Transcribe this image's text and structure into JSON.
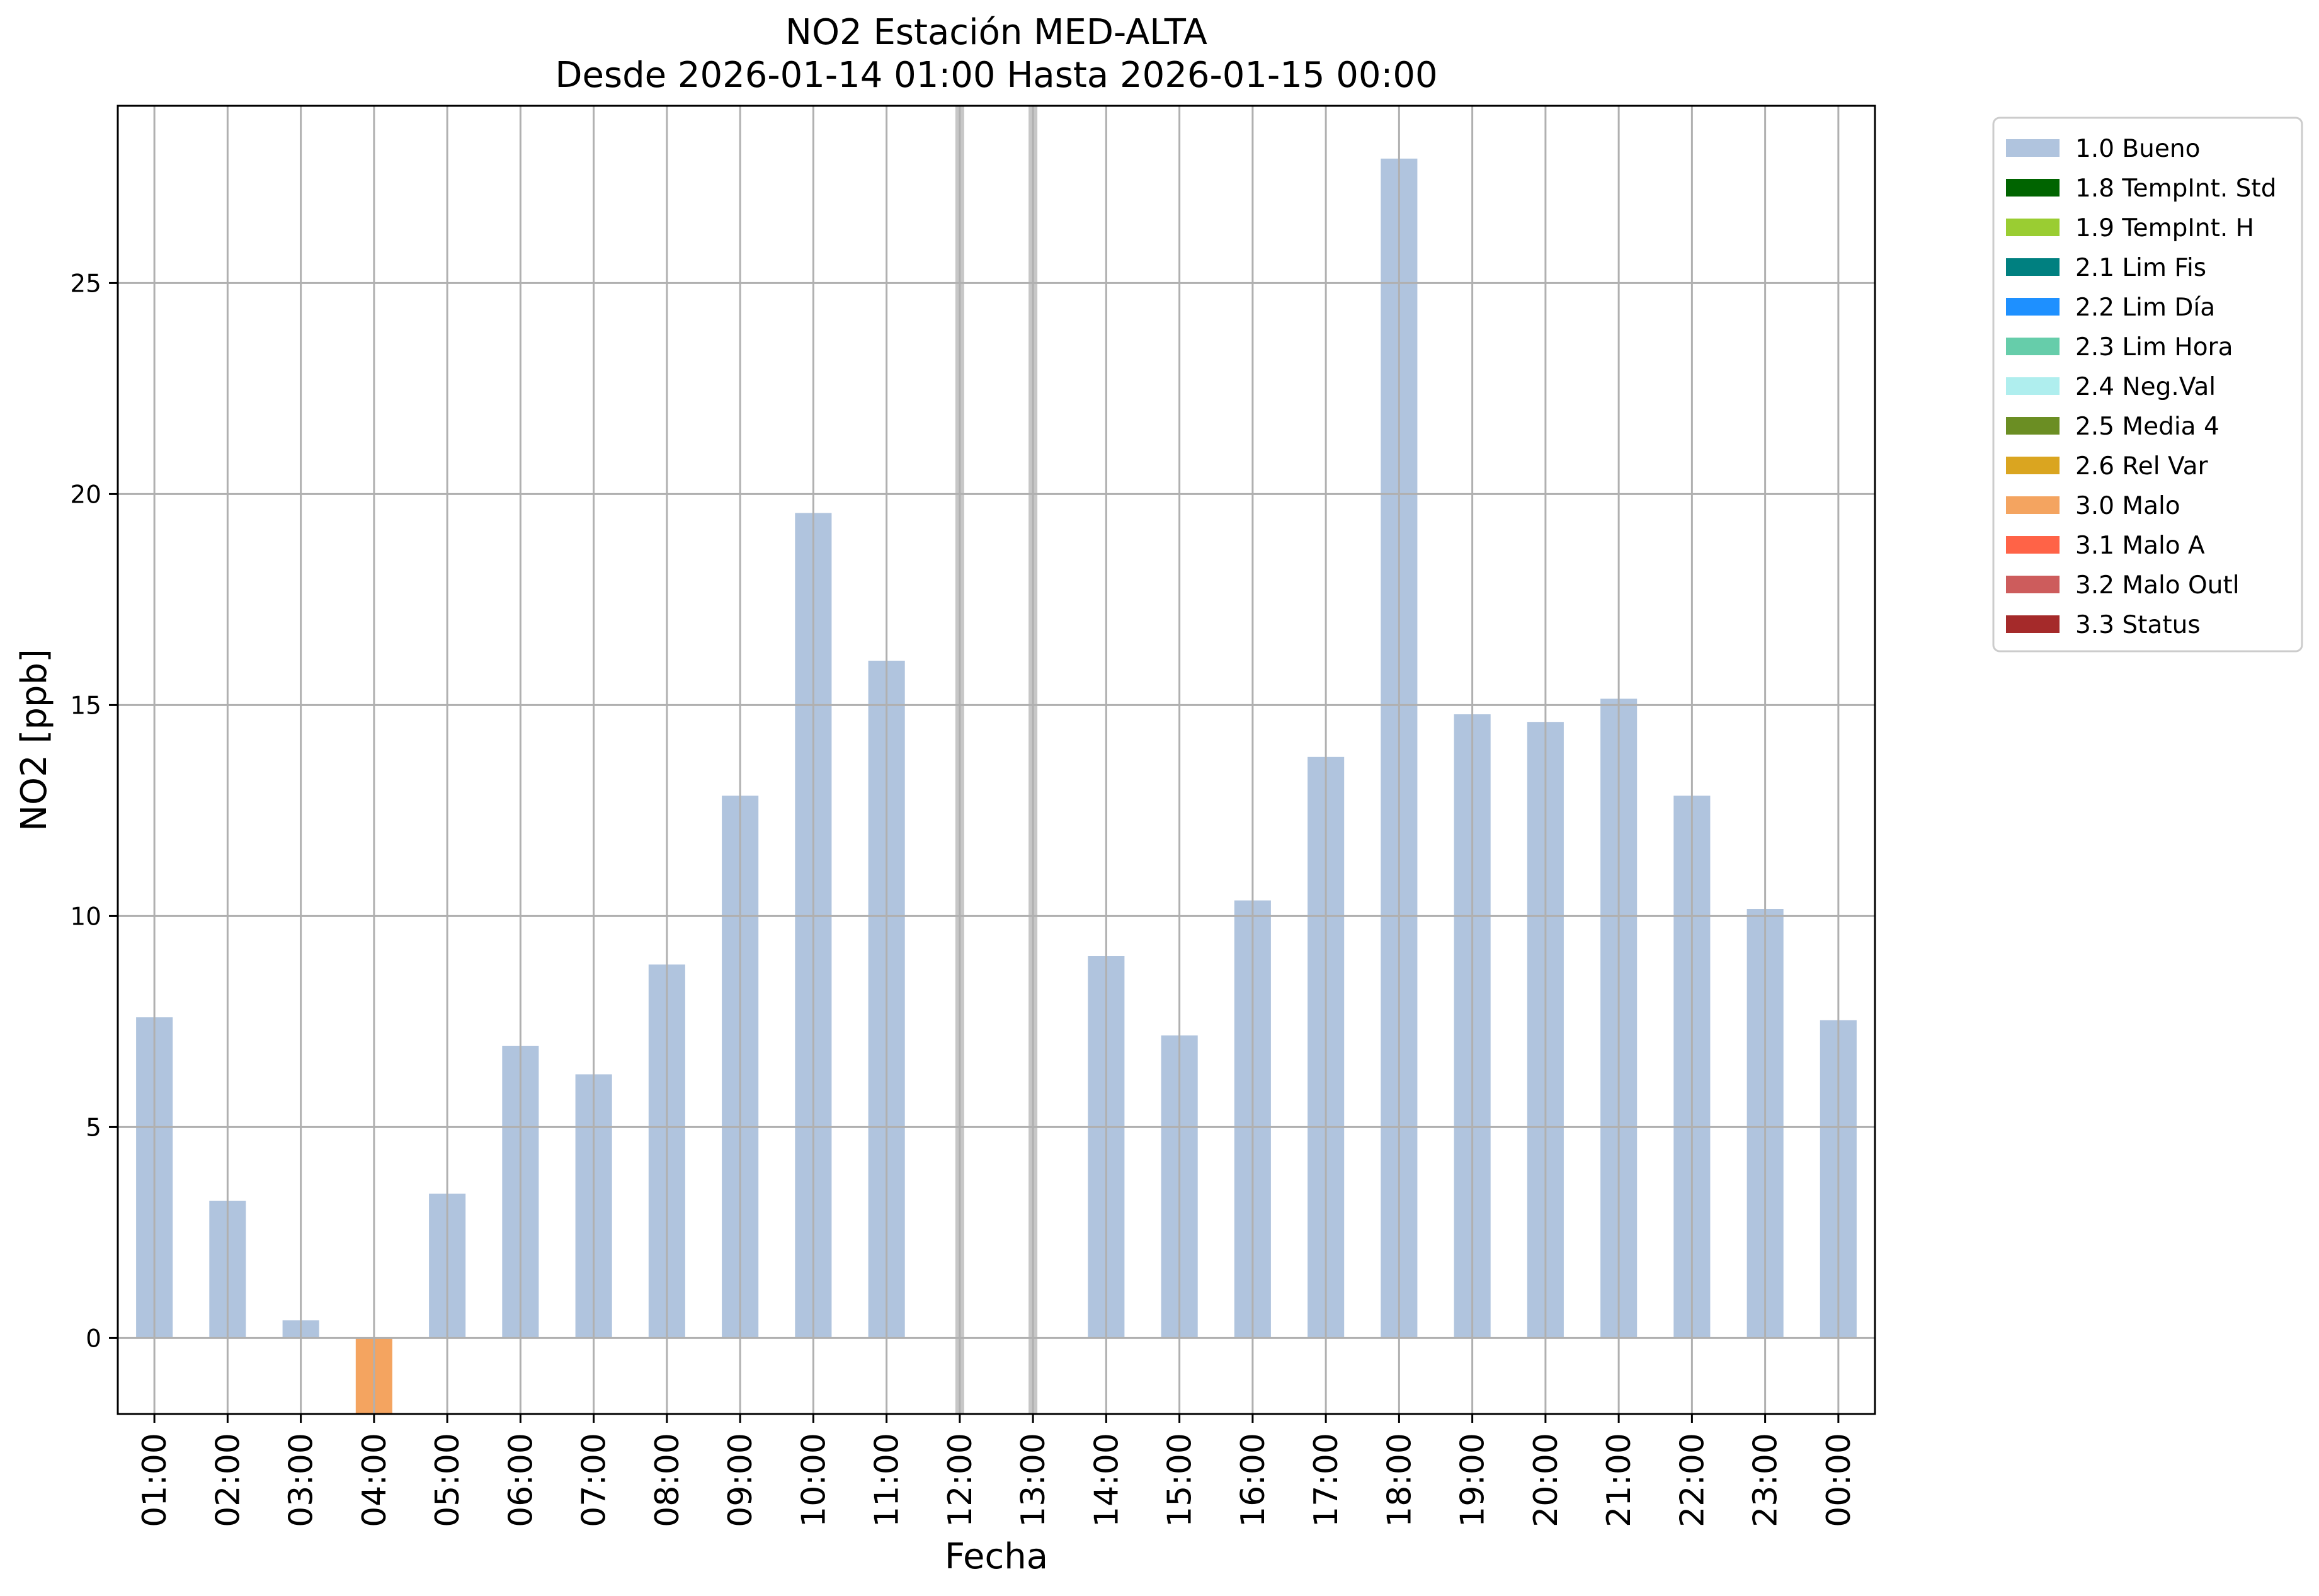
{
  "chart_data": {
    "type": "bar",
    "title": "NO2 Estación MED-ALTA",
    "subtitle": "Desde 2026-01-14 01:00 Hasta 2026-01-15 00:00",
    "xlabel": "Fecha",
    "ylabel": "NO2 [ppb]",
    "ylim": [
      -1.8,
      29.2
    ],
    "yticks": [
      0,
      5,
      10,
      15,
      20,
      25
    ],
    "grid": true,
    "categories": [
      "01:00",
      "02:00",
      "03:00",
      "04:00",
      "05:00",
      "06:00",
      "07:00",
      "08:00",
      "09:00",
      "10:00",
      "11:00",
      "12:00",
      "13:00",
      "14:00",
      "15:00",
      "16:00",
      "17:00",
      "18:00",
      "19:00",
      "20:00",
      "21:00",
      "22:00",
      "23:00",
      "00:00"
    ],
    "values": [
      7.6,
      3.25,
      0.42,
      -1.8,
      3.42,
      6.92,
      6.25,
      8.85,
      12.85,
      19.55,
      16.05,
      null,
      null,
      9.05,
      7.17,
      10.37,
      13.77,
      27.95,
      14.78,
      14.6,
      15.15,
      12.85,
      10.17,
      7.53
    ],
    "flags": [
      "1.0 Bueno",
      "1.0 Bueno",
      "1.0 Bueno",
      "3.0 Malo",
      "1.0 Bueno",
      "1.0 Bueno",
      "1.0 Bueno",
      "1.0 Bueno",
      "1.0 Bueno",
      "1.0 Bueno",
      "1.0 Bueno",
      null,
      null,
      "1.0 Bueno",
      "1.0 Bueno",
      "1.0 Bueno",
      "1.0 Bueno",
      "1.0 Bueno",
      "1.0 Bueno",
      "1.0 Bueno",
      "1.0 Bueno",
      "1.0 Bueno",
      "1.0 Bueno",
      "1.0 Bueno"
    ],
    "missing_markers": [
      "12:00",
      "13:00"
    ],
    "legend_position": "outside-top-right",
    "legend": [
      {
        "label": "1.0 Bueno",
        "color": "#b0c4de"
      },
      {
        "label": "1.8 TempInt. Std",
        "color": "#006400"
      },
      {
        "label": "1.9 TempInt. H",
        "color": "#9acd32"
      },
      {
        "label": "2.1 Lim Fis",
        "color": "#008080"
      },
      {
        "label": "2.2 Lim Día",
        "color": "#1e90ff"
      },
      {
        "label": "2.3 Lim Hora",
        "color": "#66cdaa"
      },
      {
        "label": "2.4 Neg.Val",
        "color": "#afeeee"
      },
      {
        "label": "2.5 Media 4",
        "color": "#6b8e23"
      },
      {
        "label": "2.6 Rel Var",
        "color": "#daa520"
      },
      {
        "label": "3.0 Malo",
        "color": "#f4a460"
      },
      {
        "label": "3.1 Malo A",
        "color": "#ff6347"
      },
      {
        "label": "3.2 Malo Outl",
        "color": "#cd5c5c"
      },
      {
        "label": "3.3 Status",
        "color": "#a52a2a"
      }
    ]
  }
}
